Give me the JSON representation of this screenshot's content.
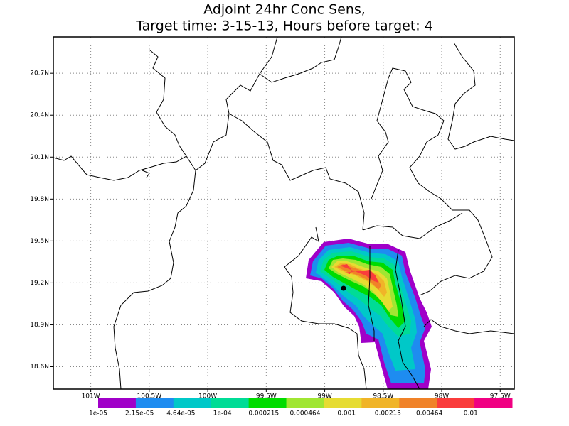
{
  "title_lines": [
    "Adjoint 24hr Conc Sens,",
    "Target time: 3-15-13, Hours before target: 4"
  ],
  "lon_range": [
    -101.32,
    -97.38
  ],
  "lat_range": [
    18.44,
    20.96
  ],
  "lat_ticks": [
    {
      "value": 20.7,
      "label": "20.7N"
    },
    {
      "value": 20.4,
      "label": "20.4N"
    },
    {
      "value": 20.1,
      "label": "20.1N"
    },
    {
      "value": 19.8,
      "label": "19.8N"
    },
    {
      "value": 19.5,
      "label": "19.5N"
    },
    {
      "value": 19.2,
      "label": "19.2N"
    },
    {
      "value": 18.9,
      "label": "18.9N"
    },
    {
      "value": 18.6,
      "label": "18.6N"
    }
  ],
  "lon_ticks": [
    {
      "value": -101,
      "label": "101W"
    },
    {
      "value": -100.5,
      "label": "100.5W"
    },
    {
      "value": -100,
      "label": "100W"
    },
    {
      "value": -99.5,
      "label": "99.5W"
    },
    {
      "value": -99,
      "label": "99W"
    },
    {
      "value": -98.5,
      "label": "98.5W"
    },
    {
      "value": -98,
      "label": "98W"
    },
    {
      "value": -97.5,
      "label": "97.5W"
    }
  ],
  "colorbar": {
    "levels": [
      {
        "value": 1e-05,
        "label": "1e-05"
      },
      {
        "value": 2.15e-05,
        "label": "2.15e-05"
      },
      {
        "value": 4.64e-05,
        "label": "4.64e-05"
      },
      {
        "value": 0.0001,
        "label": "1e-04"
      },
      0.000215,
      0.000464,
      0.001,
      0.00215,
      0.00464,
      0.01
    ],
    "colors": [
      "#a000c8",
      "#1e8cf0",
      "#00c8c8",
      "#00dc96",
      "#00dc00",
      "#a0e632",
      "#e6dc32",
      "#f0b428",
      "#f08228",
      "#fa3c3c",
      "#f00082"
    ]
  }
}
